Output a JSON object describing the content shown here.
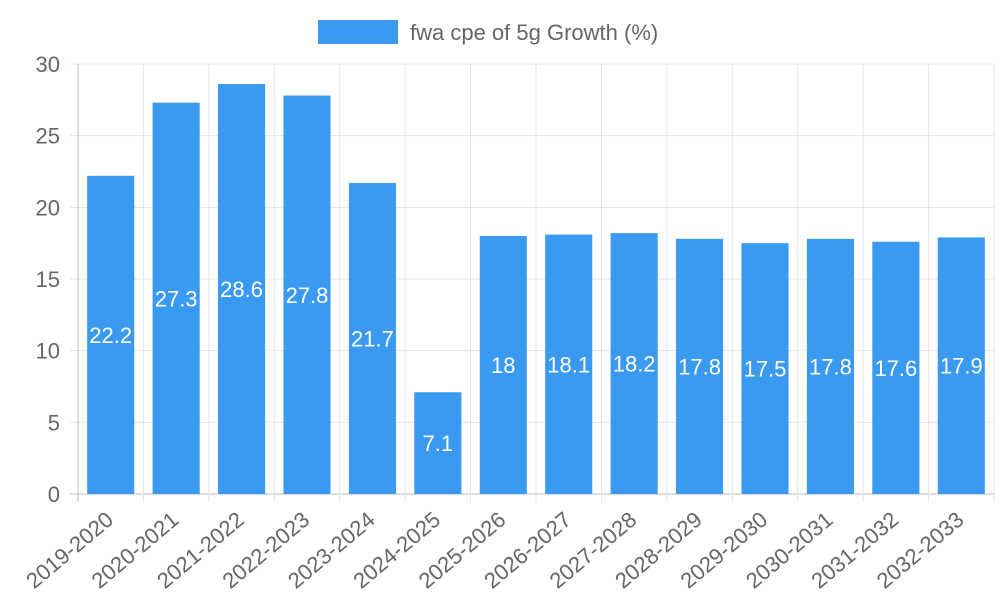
{
  "chart_data": {
    "type": "bar",
    "title": "",
    "legend": {
      "label": "fwa cpe of 5g Growth (%)",
      "position": "top-center",
      "color": "#3a9af0"
    },
    "categories": [
      "2019-2020",
      "2020-2021",
      "2021-2022",
      "2022-2023",
      "2023-2024",
      "2024-2025",
      "2025-2026",
      "2026-2027",
      "2027-2028",
      "2028-2029",
      "2029-2030",
      "2030-2031",
      "2031-2032",
      "2032-2033"
    ],
    "series": [
      {
        "name": "fwa cpe of 5g Growth (%)",
        "values": [
          22.2,
          27.3,
          28.6,
          27.8,
          21.7,
          7.1,
          18,
          18.1,
          18.2,
          17.8,
          17.5,
          17.8,
          17.6,
          17.9
        ],
        "labels": [
          "22.2",
          "27.3",
          "28.6",
          "27.8",
          "21.7",
          "7.1",
          "18",
          "18.1",
          "18.2",
          "17.8",
          "17.5",
          "17.8",
          "17.6",
          "17.9"
        ]
      }
    ],
    "ylim": [
      0,
      30
    ],
    "yticks": [
      0,
      5,
      10,
      15,
      20,
      25,
      30
    ],
    "ytick_labels": [
      "0",
      "5",
      "10",
      "15",
      "20",
      "25",
      "30"
    ],
    "xlabel": "",
    "ylabel": "",
    "grid": true,
    "colors": {
      "bar": "#3a9af0",
      "grid": "#e5e5e5",
      "text": "#666666",
      "label": "#ffffff"
    }
  }
}
